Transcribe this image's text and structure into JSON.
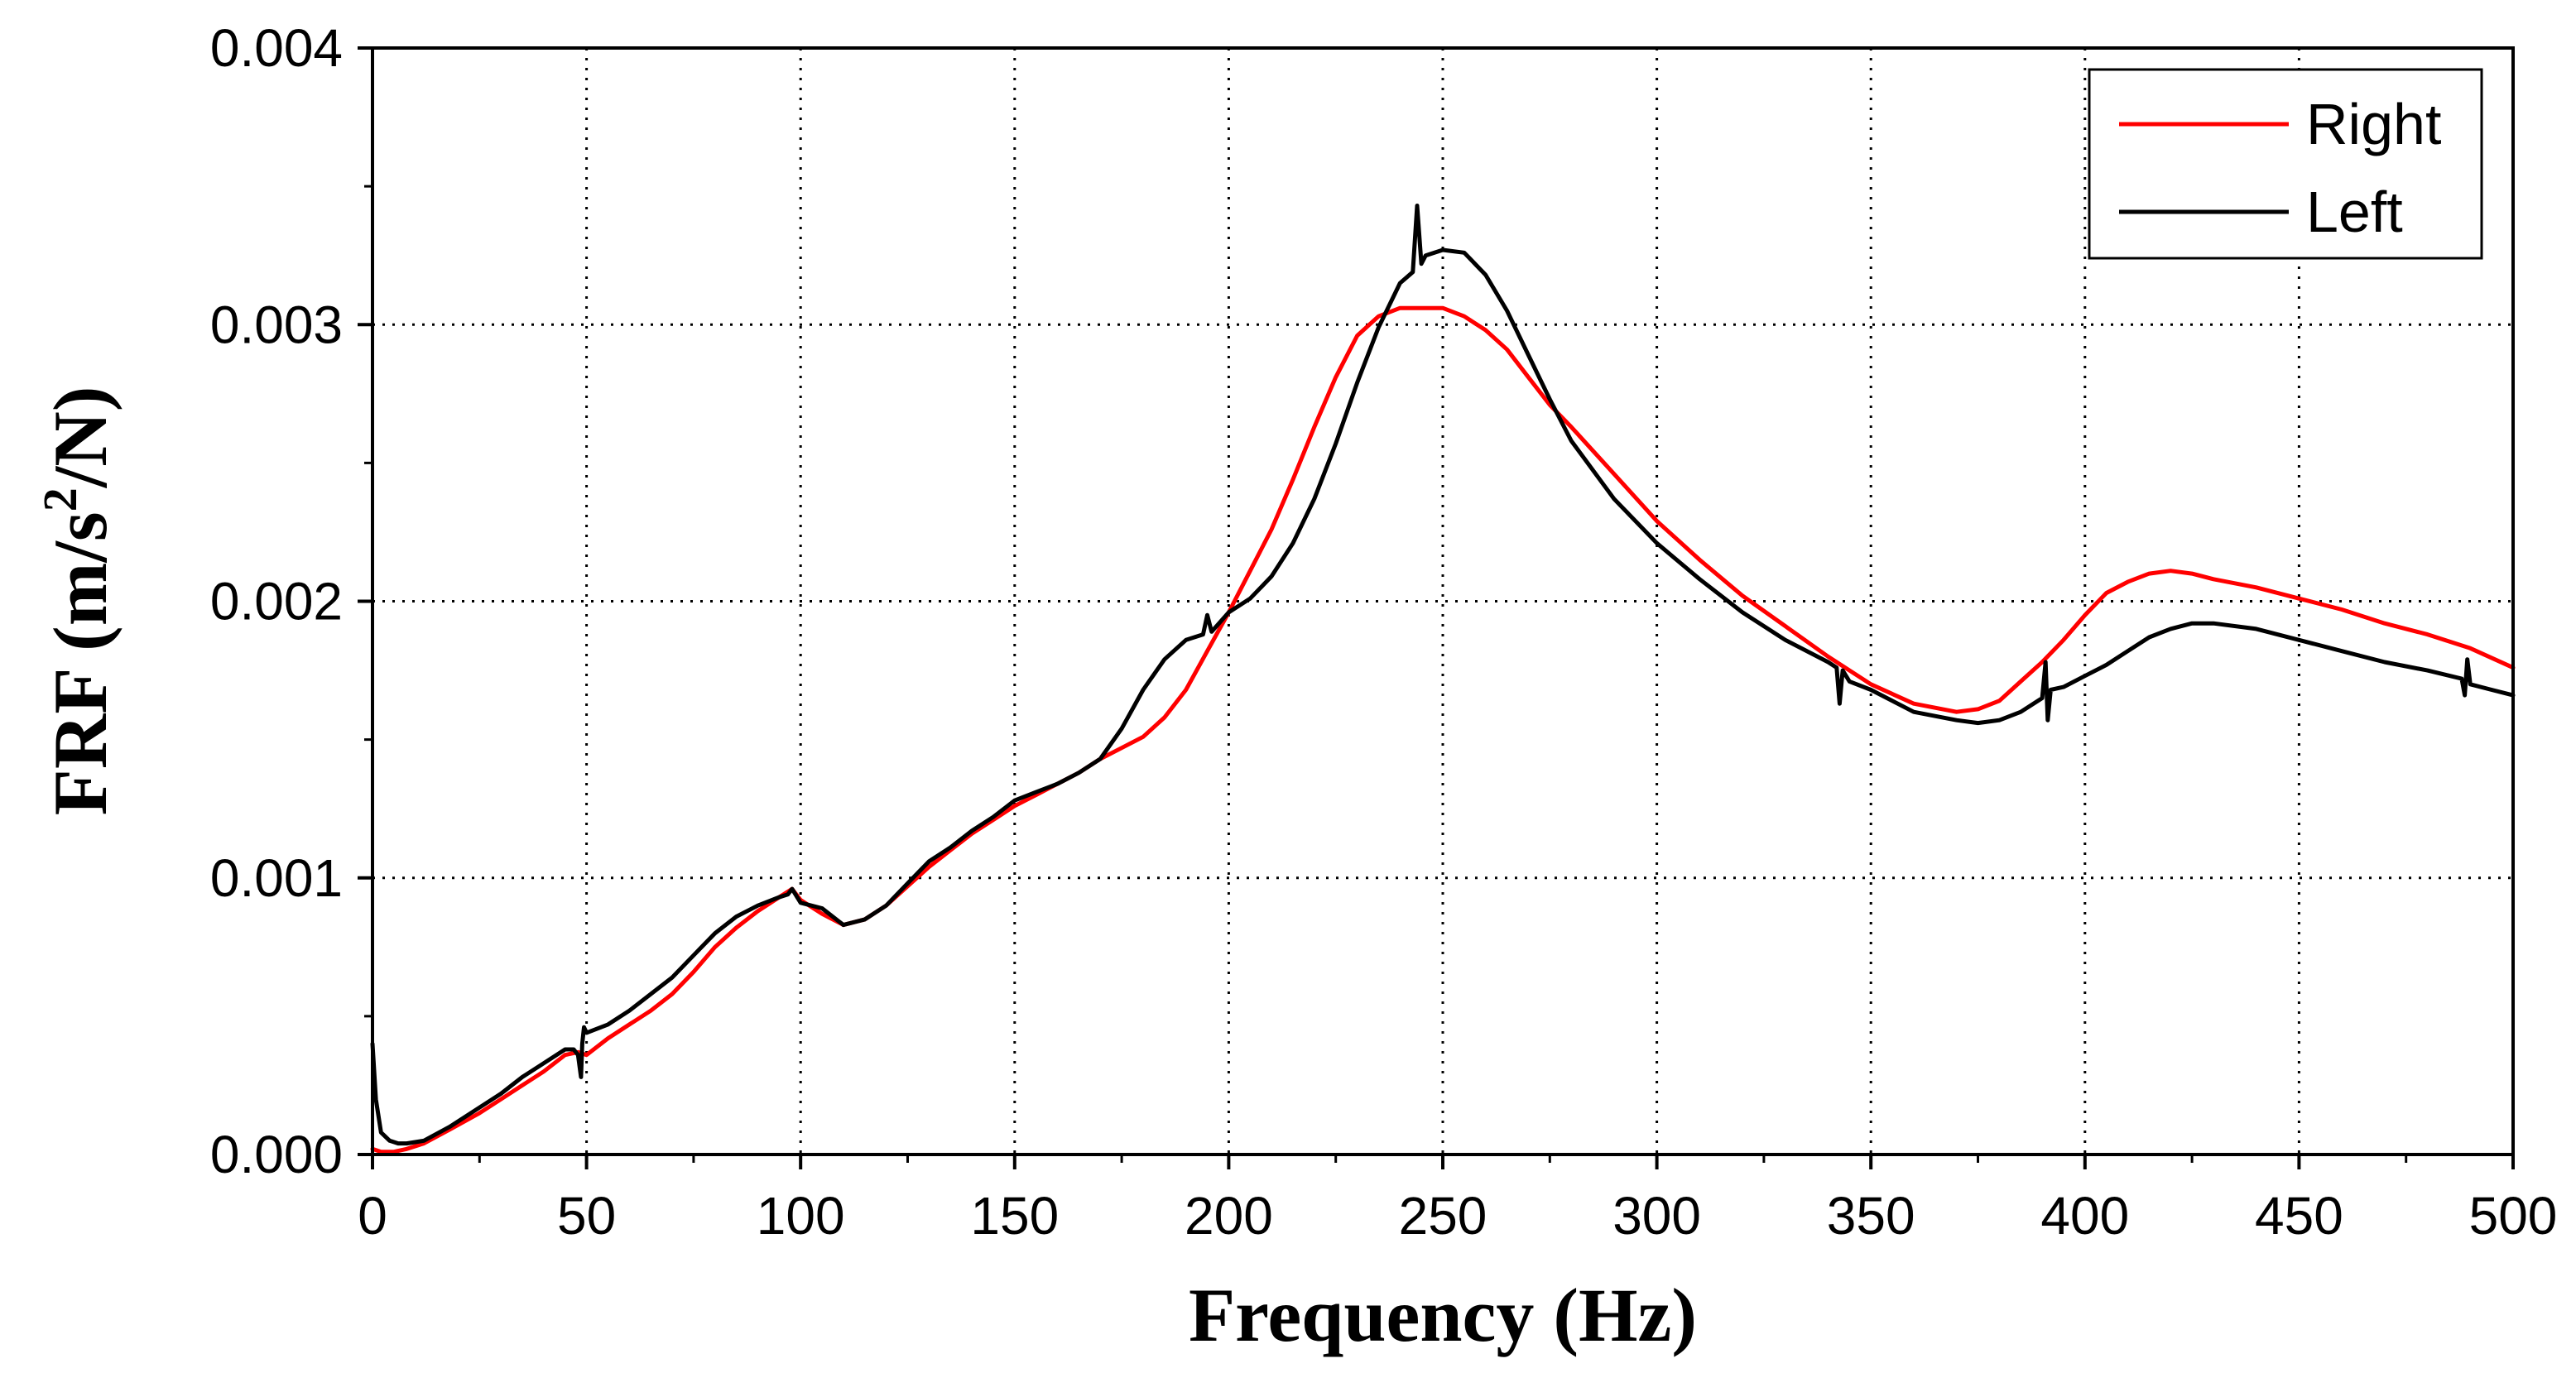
{
  "chart_data": {
    "type": "line",
    "title": "",
    "xlabel": "Frequency (Hz)",
    "ylabel_parts": {
      "base": "FRF (m/s",
      "sup": "2",
      "tail": "/N)"
    },
    "xlim": [
      0,
      500
    ],
    "ylim": [
      0,
      0.004
    ],
    "xticks": [
      0,
      50,
      100,
      150,
      200,
      250,
      300,
      350,
      400,
      450,
      500
    ],
    "xtick_labels": [
      "0",
      "50",
      "100",
      "150",
      "200",
      "250",
      "300",
      "350",
      "400",
      "450",
      "500"
    ],
    "yticks": [
      0,
      0.001,
      0.002,
      0.003,
      0.004
    ],
    "ytick_labels": [
      "0.000",
      "0.001",
      "0.002",
      "0.003",
      "0.004"
    ],
    "grid": true,
    "legend_position": "top-right",
    "series": [
      {
        "name": "Right",
        "color": "#ff0000",
        "x": [
          0,
          2,
          5,
          8,
          12,
          18,
          25,
          30,
          35,
          40,
          45,
          48,
          50,
          55,
          60,
          65,
          70,
          75,
          80,
          85,
          90,
          95,
          98,
          100,
          105,
          110,
          115,
          120,
          125,
          130,
          135,
          140,
          145,
          150,
          155,
          160,
          165,
          170,
          175,
          180,
          185,
          190,
          195,
          200,
          205,
          210,
          215,
          220,
          225,
          230,
          235,
          240,
          245,
          250,
          255,
          260,
          265,
          270,
          275,
          280,
          290,
          300,
          310,
          320,
          330,
          340,
          350,
          360,
          370,
          375,
          380,
          385,
          390,
          395,
          400,
          405,
          410,
          415,
          420,
          425,
          430,
          440,
          450,
          460,
          470,
          480,
          490,
          500
        ],
        "y": [
          2e-05,
          1e-05,
          1e-05,
          2e-05,
          4e-05,
          9e-05,
          0.00015,
          0.0002,
          0.00025,
          0.0003,
          0.00036,
          0.00037,
          0.00036,
          0.00042,
          0.00047,
          0.00052,
          0.00058,
          0.00066,
          0.00075,
          0.00082,
          0.00088,
          0.00093,
          0.00096,
          0.00092,
          0.00087,
          0.00083,
          0.00085,
          0.0009,
          0.00097,
          0.00104,
          0.0011,
          0.00116,
          0.00121,
          0.00126,
          0.0013,
          0.00134,
          0.00138,
          0.00143,
          0.00147,
          0.00151,
          0.00158,
          0.00168,
          0.00182,
          0.00196,
          0.00211,
          0.00226,
          0.00244,
          0.00263,
          0.00281,
          0.00296,
          0.00303,
          0.00306,
          0.00306,
          0.00306,
          0.00303,
          0.00298,
          0.00291,
          0.00281,
          0.00271,
          0.00263,
          0.00246,
          0.00229,
          0.00215,
          0.00202,
          0.00191,
          0.0018,
          0.0017,
          0.00163,
          0.0016,
          0.00161,
          0.00164,
          0.00171,
          0.00178,
          0.00186,
          0.00195,
          0.00203,
          0.00207,
          0.0021,
          0.00211,
          0.0021,
          0.00208,
          0.00205,
          0.00201,
          0.00197,
          0.00192,
          0.00188,
          0.00183,
          0.00176
        ]
      },
      {
        "name": "Left",
        "color": "#000000",
        "x": [
          0,
          0.8,
          2,
          4,
          6,
          8,
          12,
          18,
          25,
          30,
          35,
          40,
          45,
          47,
          48,
          48.7,
          49,
          49.4,
          50,
          55,
          60,
          65,
          70,
          75,
          80,
          85,
          90,
          95,
          97,
          98,
          100,
          105,
          110,
          115,
          120,
          125,
          130,
          135,
          140,
          145,
          150,
          155,
          160,
          165,
          170,
          175,
          180,
          185,
          190,
          194,
          195,
          196,
          200,
          205,
          210,
          215,
          220,
          225,
          230,
          235,
          240,
          243,
          244,
          245,
          246,
          250,
          255,
          260,
          265,
          270,
          275,
          280,
          290,
          300,
          310,
          320,
          330,
          340,
          342,
          342.7,
          343.4,
          345,
          350,
          360,
          370,
          375,
          380,
          385,
          390,
          390.8,
          391.3,
          392,
          395,
          400,
          405,
          410,
          415,
          420,
          425,
          430,
          440,
          450,
          460,
          470,
          480,
          488,
          488.7,
          489.3,
          490,
          495,
          500
        ],
        "y": [
          0.0004,
          0.0002,
          8e-05,
          5e-05,
          4e-05,
          4e-05,
          5e-05,
          0.0001,
          0.00017,
          0.00022,
          0.00028,
          0.00033,
          0.00038,
          0.00038,
          0.00036,
          0.00028,
          0.0004,
          0.00046,
          0.00044,
          0.00047,
          0.00052,
          0.00058,
          0.00064,
          0.00072,
          0.0008,
          0.00086,
          0.0009,
          0.00093,
          0.00094,
          0.00096,
          0.00091,
          0.00089,
          0.00083,
          0.00085,
          0.0009,
          0.00098,
          0.00106,
          0.00111,
          0.00117,
          0.00122,
          0.00128,
          0.00131,
          0.00134,
          0.00138,
          0.00143,
          0.00154,
          0.00168,
          0.00179,
          0.00186,
          0.00188,
          0.00195,
          0.00189,
          0.00196,
          0.00201,
          0.00209,
          0.00221,
          0.00237,
          0.00257,
          0.00279,
          0.00299,
          0.00315,
          0.00319,
          0.00343,
          0.00322,
          0.00325,
          0.00327,
          0.00326,
          0.00318,
          0.00305,
          0.00289,
          0.00273,
          0.00258,
          0.00237,
          0.00221,
          0.00208,
          0.00196,
          0.00186,
          0.00178,
          0.00176,
          0.00163,
          0.00175,
          0.00171,
          0.00168,
          0.0016,
          0.00157,
          0.00156,
          0.00157,
          0.0016,
          0.00165,
          0.00178,
          0.00157,
          0.00168,
          0.00169,
          0.00173,
          0.00177,
          0.00182,
          0.00187,
          0.0019,
          0.00192,
          0.00192,
          0.0019,
          0.00186,
          0.00182,
          0.00178,
          0.00175,
          0.00172,
          0.00166,
          0.00179,
          0.0017,
          0.00168,
          0.00166
        ]
      }
    ]
  }
}
